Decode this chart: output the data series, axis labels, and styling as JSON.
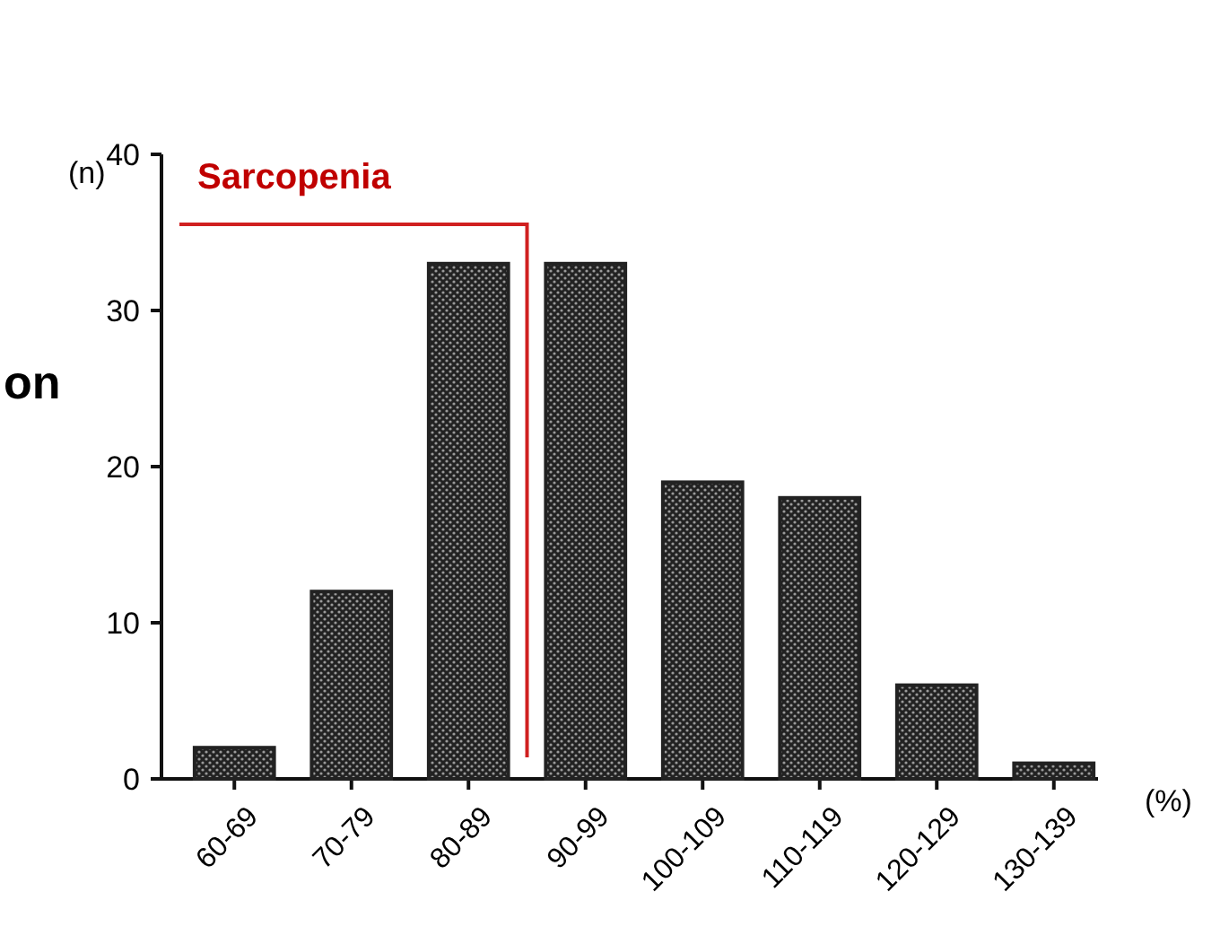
{
  "chart_data": {
    "type": "bar",
    "categories": [
      "60-69",
      "70-79",
      "80-89",
      "90-99",
      "100-109",
      "110-119",
      "120-129",
      "130-139"
    ],
    "values": [
      2,
      12,
      33,
      33,
      19,
      18,
      6,
      1
    ],
    "color": "#222222",
    "ylabel": "(n)",
    "xlabel": "(%)",
    "ylim": [
      0,
      40
    ],
    "yticks": [
      0,
      10,
      20,
      30,
      40
    ],
    "annotations": [
      "Sarcopenia",
      "on"
    ]
  }
}
